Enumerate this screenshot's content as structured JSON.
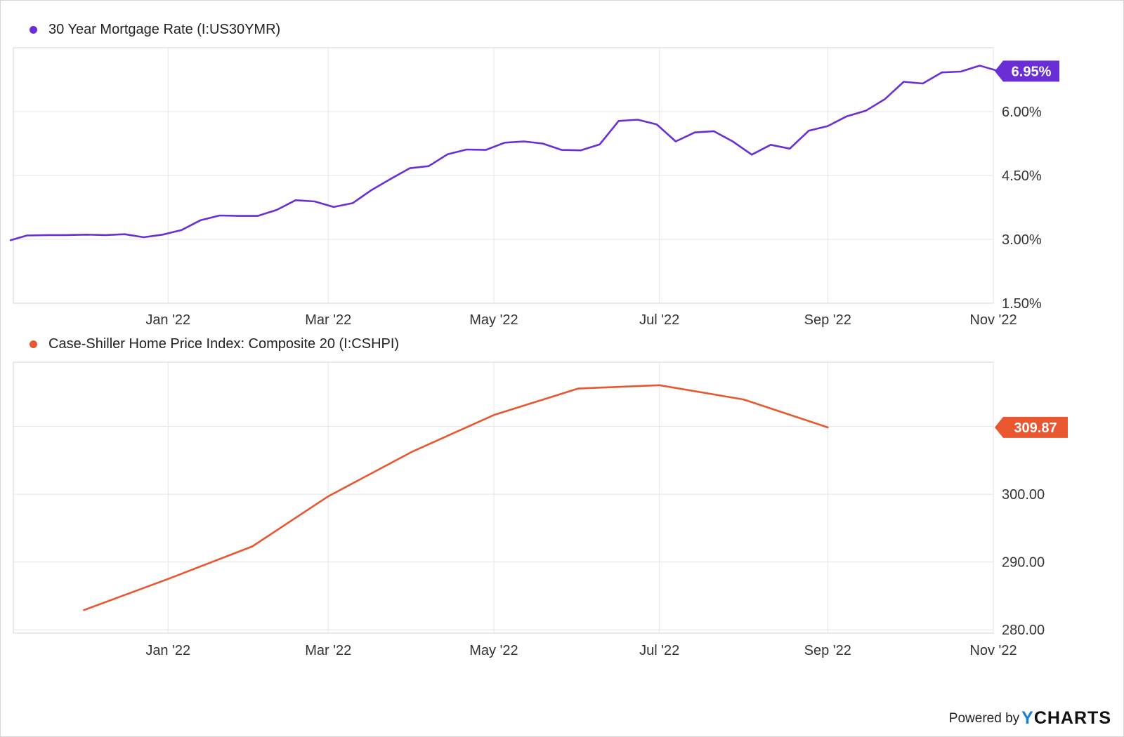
{
  "colors": {
    "mortgage": "#6a2fd4",
    "caseshiller": "#e8572f",
    "grid": "#e5e5e5",
    "text": "#333333"
  },
  "footer": {
    "powered_by": "Powered by",
    "brand_y": "Y",
    "brand_rest": "CHARTS"
  },
  "chart_data": [
    {
      "type": "line",
      "title": "30 Year Mortgage Rate (I:US30YMR)",
      "unit": "%",
      "x_ticks": [
        "Jan '22",
        "Mar '22",
        "May '22",
        "Jul '22",
        "Sep '22",
        "Nov '22"
      ],
      "x_tick_dates": [
        "2022-01-01",
        "2022-03-01",
        "2022-05-01",
        "2022-07-01",
        "2022-09-01",
        "2022-11-01"
      ],
      "xlim": [
        "2021-11-05",
        "2022-11-01"
      ],
      "y_ticks": [
        "1.50%",
        "3.00%",
        "4.50%",
        "6.00%"
      ],
      "y_tick_values": [
        1.5,
        3.0,
        4.5,
        6.0
      ],
      "ylim": [
        1.5,
        7.5
      ],
      "last_value_label": "6.95%",
      "series": [
        {
          "name": "30 Year Mortgage Rate (I:US30YMR)",
          "x": [
            "2021-11-04",
            "2021-11-10",
            "2021-11-18",
            "2021-11-24",
            "2021-12-02",
            "2021-12-09",
            "2021-12-16",
            "2021-12-23",
            "2021-12-30",
            "2022-01-06",
            "2022-01-13",
            "2022-01-20",
            "2022-01-27",
            "2022-02-03",
            "2022-02-10",
            "2022-02-17",
            "2022-02-24",
            "2022-03-03",
            "2022-03-10",
            "2022-03-17",
            "2022-03-24",
            "2022-03-31",
            "2022-04-07",
            "2022-04-14",
            "2022-04-21",
            "2022-04-28",
            "2022-05-05",
            "2022-05-12",
            "2022-05-19",
            "2022-05-26",
            "2022-06-02",
            "2022-06-09",
            "2022-06-16",
            "2022-06-23",
            "2022-06-30",
            "2022-07-07",
            "2022-07-14",
            "2022-07-21",
            "2022-07-28",
            "2022-08-04",
            "2022-08-11",
            "2022-08-18",
            "2022-08-25",
            "2022-09-01",
            "2022-09-08",
            "2022-09-15",
            "2022-09-22",
            "2022-09-29",
            "2022-10-06",
            "2022-10-13",
            "2022-10-20",
            "2022-10-27",
            "2022-11-03"
          ],
          "y": [
            2.98,
            3.09,
            3.1,
            3.1,
            3.11,
            3.1,
            3.12,
            3.05,
            3.11,
            3.22,
            3.45,
            3.56,
            3.55,
            3.55,
            3.69,
            3.92,
            3.89,
            3.76,
            3.85,
            4.16,
            4.42,
            4.67,
            4.72,
            5.0,
            5.11,
            5.1,
            5.27,
            5.3,
            5.25,
            5.1,
            5.09,
            5.23,
            5.78,
            5.81,
            5.7,
            5.3,
            5.51,
            5.54,
            5.3,
            4.99,
            5.22,
            5.13,
            5.55,
            5.66,
            5.89,
            6.02,
            6.29,
            6.7,
            6.66,
            6.92,
            6.94,
            7.08,
            6.95
          ]
        }
      ]
    },
    {
      "type": "line",
      "title": "Case-Shiller Home Price Index: Composite 20 (I:CSHPI)",
      "x_ticks": [
        "Jan '22",
        "Mar '22",
        "May '22",
        "Jul '22",
        "Sep '22",
        "Nov '22"
      ],
      "x_tick_dates": [
        "2022-01-01",
        "2022-03-01",
        "2022-05-01",
        "2022-07-01",
        "2022-09-01",
        "2022-11-01"
      ],
      "xlim": [
        "2021-11-05",
        "2022-11-01"
      ],
      "y_ticks": [
        "280.00",
        "290.00",
        "300.00",
        "310.00"
      ],
      "y_tick_values": [
        280,
        290,
        300,
        310
      ],
      "ylim": [
        279.5,
        319.5
      ],
      "last_value_label": "309.87",
      "series": [
        {
          "name": "Case-Shiller Home Price Index: Composite 20 (I:CSHPI)",
          "x": [
            "2021-12-01",
            "2022-01-01",
            "2022-02-01",
            "2022-03-01",
            "2022-04-01",
            "2022-05-01",
            "2022-06-01",
            "2022-07-01",
            "2022-08-01",
            "2022-09-01"
          ],
          "y": [
            282.9,
            287.5,
            292.3,
            299.7,
            306.3,
            311.7,
            315.6,
            316.1,
            314.0,
            309.87
          ]
        }
      ]
    }
  ]
}
